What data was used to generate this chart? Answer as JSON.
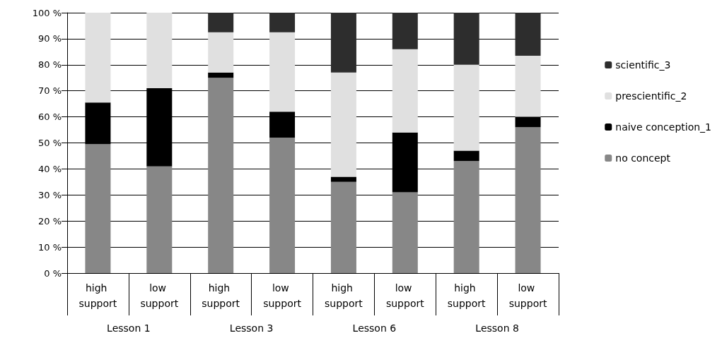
{
  "chart_data": {
    "type": "bar",
    "stacked": true,
    "categories": [
      "high support",
      "low support",
      "high support",
      "low support",
      "high support",
      "low support",
      "high support",
      "low support"
    ],
    "series": [
      {
        "name": "no concept",
        "color": "#878787",
        "values": [
          49.5,
          41,
          75,
          52,
          35,
          31,
          43,
          56
        ]
      },
      {
        "name": "naive conception_1",
        "color": "#000000",
        "values": [
          16,
          30,
          2,
          10,
          2,
          23,
          4,
          4
        ]
      },
      {
        "name": "prescientific_2",
        "color": "#e0e0e0",
        "values": [
          34.5,
          29,
          15.5,
          30.5,
          40,
          32,
          33,
          23.5
        ]
      },
      {
        "name": "scientific_3",
        "color": "#2d2d2d",
        "values": [
          0,
          0,
          7.5,
          7.5,
          23,
          14,
          20,
          16.5
        ]
      }
    ],
    "ylim": [
      0,
      100
    ],
    "yticks": [
      {
        "value": 0,
        "label": "0 %"
      },
      {
        "value": 10,
        "label": "10 %"
      },
      {
        "value": 20,
        "label": "20 %"
      },
      {
        "value": 30,
        "label": "30 %"
      },
      {
        "value": 40,
        "label": "40 %"
      },
      {
        "value": 50,
        "label": "50 %"
      },
      {
        "value": 60,
        "label": "60 %"
      },
      {
        "value": 70,
        "label": "70 %"
      },
      {
        "value": 80,
        "label": "80 %"
      },
      {
        "value": 90,
        "label": "90 %"
      },
      {
        "value": 100,
        "label": "100 %"
      }
    ],
    "annotations": [
      "Lesson 1",
      "Lesson 3",
      "Lesson 6",
      "Lesson 8"
    ],
    "grid": "y",
    "legend": "right"
  }
}
